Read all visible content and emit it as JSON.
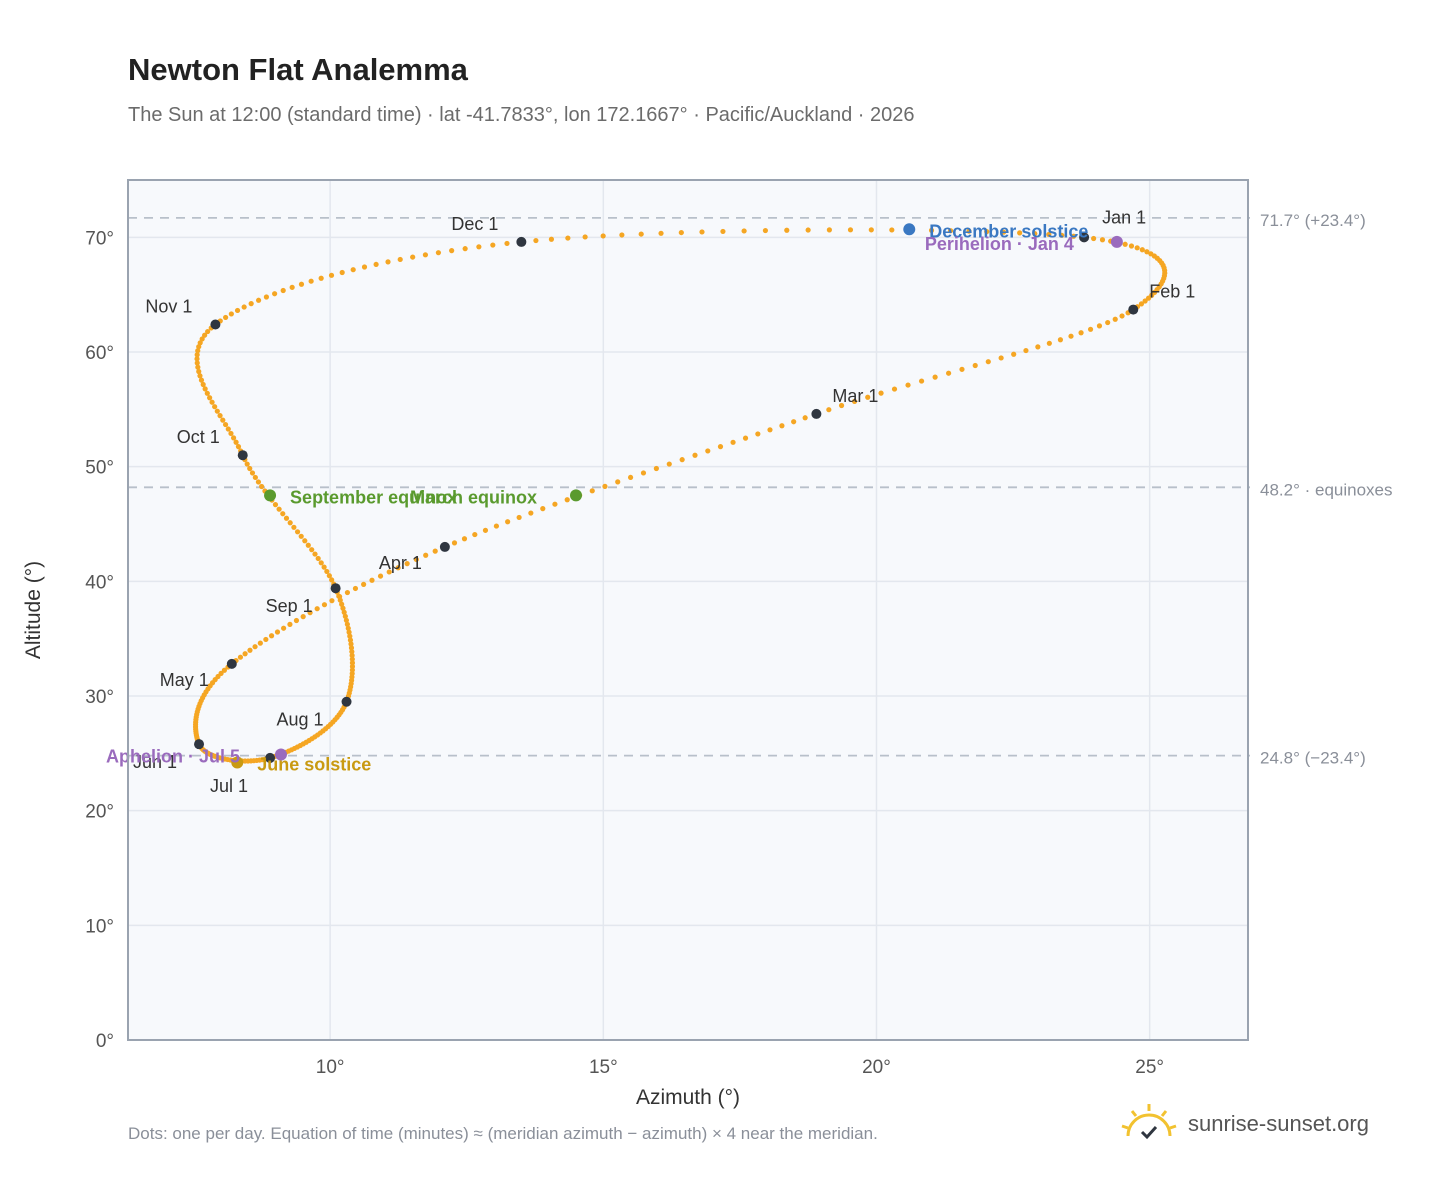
{
  "header": {
    "title": "Newton Flat Analemma",
    "subtitle": "The Sun at 12:00 (standard time) · lat -41.7833°, lon 172.1667° · Pacific/Auckland · 2026"
  },
  "footer": {
    "note": "Dots: one per day. Equation of time (minutes) ≈ (meridian azimuth − azimuth) × 4 near the meridian.",
    "brand": "sunrise-sunset.org"
  },
  "colors": {
    "curve": "#f5a623",
    "month_marker": "#2f3640",
    "equinox": "#5a9a2e",
    "december_solstice": "#3a78c2",
    "june_solstice": "#c99a12",
    "apsis": "#9a6bbd",
    "reference_line": "#b8c0ca",
    "plot_bg": "#f7f9fc",
    "grid": "#e3e7ee",
    "frame": "#9aa3b0"
  },
  "chart_data": {
    "type": "scatter",
    "xlabel": "Azimuth (°)",
    "ylabel": "Altitude (°)",
    "xlim": [
      6.3,
      26.8
    ],
    "ylim": [
      0,
      75
    ],
    "x_ticks": [
      10,
      15,
      20,
      25
    ],
    "x_tick_labels": [
      "10°",
      "15°",
      "20°",
      "25°"
    ],
    "y_ticks": [
      0,
      10,
      20,
      30,
      40,
      50,
      60,
      70
    ],
    "y_tick_labels": [
      "0°",
      "10°",
      "20°",
      "30°",
      "40°",
      "50°",
      "60°",
      "70°"
    ],
    "grid": true,
    "reference_lines": [
      {
        "y": 71.7,
        "label": "71.7° (+23.4°)"
      },
      {
        "y": 48.2,
        "label": "48.2° · equinoxes"
      },
      {
        "y": 24.8,
        "label": "24.8° (−23.4°)"
      }
    ],
    "monthly_markers": [
      {
        "label": "Jan 1",
        "x": 23.8,
        "y": 70.0
      },
      {
        "label": "Feb 1",
        "x": 24.7,
        "y": 63.7
      },
      {
        "label": "Mar 1",
        "x": 18.9,
        "y": 54.6
      },
      {
        "label": "Apr 1",
        "x": 12.1,
        "y": 43.0
      },
      {
        "label": "May 1",
        "x": 8.2,
        "y": 32.8
      },
      {
        "label": "Jun 1",
        "x": 7.6,
        "y": 25.8
      },
      {
        "label": "Jul 1",
        "x": 8.9,
        "y": 24.6
      },
      {
        "label": "Aug 1",
        "x": 10.3,
        "y": 29.5
      },
      {
        "label": "Sep 1",
        "x": 10.1,
        "y": 39.4
      },
      {
        "label": "Oct 1",
        "x": 8.4,
        "y": 51.0
      },
      {
        "label": "Nov 1",
        "x": 7.9,
        "y": 62.4
      },
      {
        "label": "Dec 1",
        "x": 13.5,
        "y": 69.6
      }
    ],
    "events": [
      {
        "label": "March equinox",
        "x": 14.5,
        "y": 47.5,
        "kind": "equinox"
      },
      {
        "label": "September equinox",
        "x": 8.9,
        "y": 47.5,
        "kind": "equinox"
      },
      {
        "label": "December solstice",
        "x": 20.6,
        "y": 70.7,
        "kind": "december_solstice"
      },
      {
        "label": "June solstice",
        "x": 8.3,
        "y": 24.2,
        "kind": "june_solstice"
      },
      {
        "label": "Perihelion · Jan 4",
        "x": 24.4,
        "y": 69.6,
        "kind": "apsis"
      },
      {
        "label": "Aphelion · Jul 5",
        "x": 9.1,
        "y": 24.9,
        "kind": "apsis"
      }
    ]
  }
}
